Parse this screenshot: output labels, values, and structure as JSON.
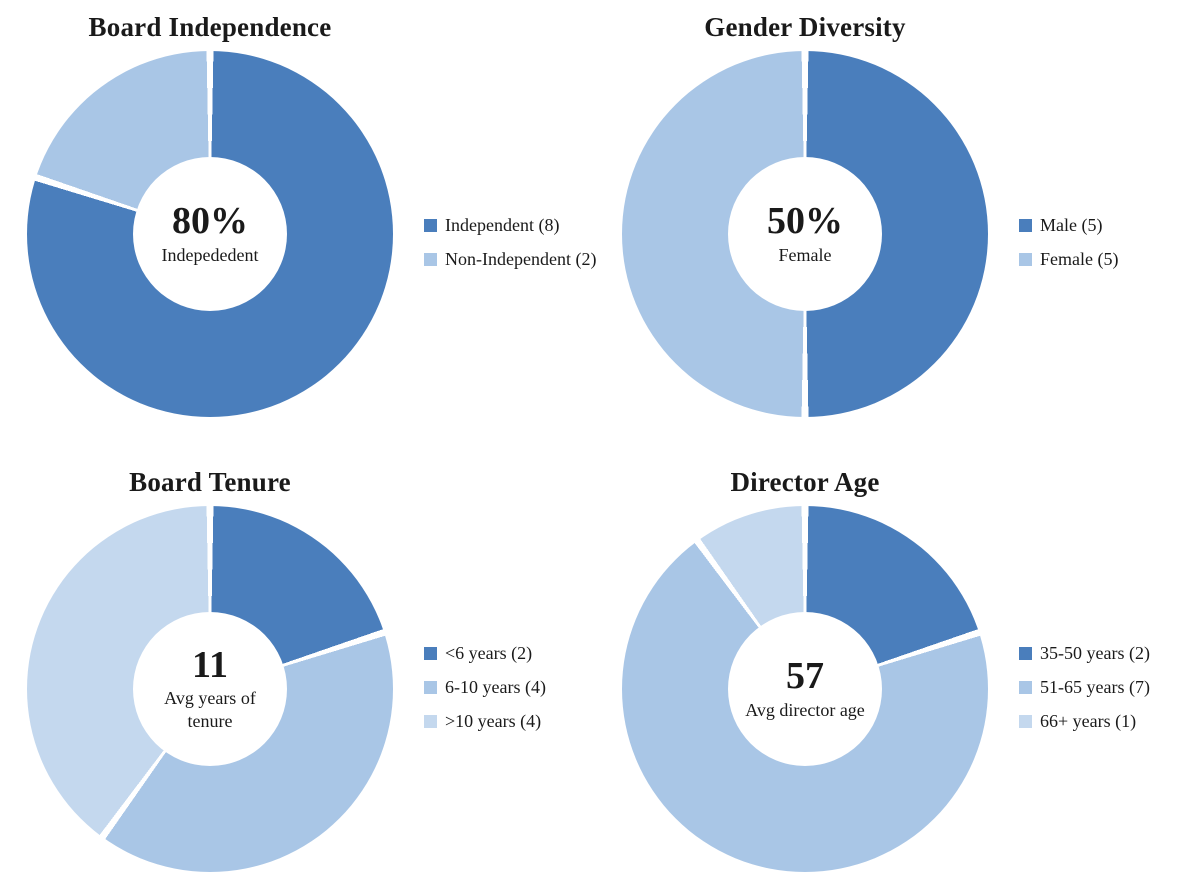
{
  "accent_colors": {
    "dark_blue": "#4a7ebc",
    "medium_blue": "#a9c6e6",
    "light_blue": "#c4d8ee"
  },
  "chart_data": [
    {
      "type": "pie",
      "subtype": "donut",
      "title": "Board Independence",
      "center_value": "80%",
      "center_label": "Indepededent",
      "legend_position": "right",
      "segments": [
        {
          "label": "Independent (8)",
          "value": 8,
          "color": "#4a7ebc"
        },
        {
          "label": "Non-Independent (2)",
          "value": 2,
          "color": "#a9c6e6"
        }
      ]
    },
    {
      "type": "pie",
      "subtype": "donut",
      "title": "Gender Diversity",
      "center_value": "50%",
      "center_label": "Female",
      "legend_position": "right",
      "segments": [
        {
          "label": "Male (5)",
          "value": 5,
          "color": "#4a7ebc"
        },
        {
          "label": "Female (5)",
          "value": 5,
          "color": "#a9c6e6"
        }
      ]
    },
    {
      "type": "pie",
      "subtype": "donut",
      "title": "Board Tenure",
      "center_value": "11",
      "center_label": "Avg years of tenure",
      "legend_position": "right",
      "segments": [
        {
          "label": "<6 years (2)",
          "value": 2,
          "color": "#4a7ebc"
        },
        {
          "label": "6-10 years (4)",
          "value": 4,
          "color": "#a9c6e6"
        },
        {
          "label": ">10 years (4)",
          "value": 4,
          "color": "#c4d8ee"
        }
      ]
    },
    {
      "type": "pie",
      "subtype": "donut",
      "title": "Director Age",
      "center_value": "57",
      "center_label": "Avg director age",
      "legend_position": "right",
      "segments": [
        {
          "label": "35-50 years (2)",
          "value": 2,
          "color": "#4a7ebc"
        },
        {
          "label": "51-65 years (7)",
          "value": 7,
          "color": "#a9c6e6"
        },
        {
          "label": "66+ years (1)",
          "value": 1,
          "color": "#c4d8ee"
        }
      ]
    }
  ]
}
